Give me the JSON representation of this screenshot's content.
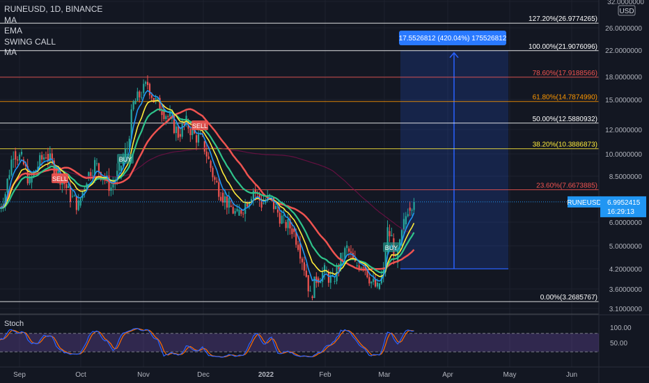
{
  "header": {
    "symbol_line": "RUNEUSD, 1D, BINANCE",
    "indicators": [
      "MA",
      "EMA",
      "SWING CALL",
      "MA"
    ]
  },
  "stoch_label": "Stoch",
  "axis": {
    "currency": "USD",
    "top_tick": "32.0000000",
    "price_ticks": [
      "26.0000000",
      "22.0000000",
      "18.0000000",
      "15.0000000",
      "12.0000000",
      "10.0000000",
      "8.5000000",
      "6.0000000",
      "5.0000000",
      "4.2000000",
      "3.6000000",
      "3.1000000"
    ],
    "stoch_ticks": [
      "100.00",
      "50.00"
    ],
    "time_labels": [
      "Sep",
      "Oct",
      "Nov",
      "Dec",
      "2022",
      "Feb",
      "Mar",
      "Apr",
      "May",
      "Jun"
    ]
  },
  "colors": {
    "background": "#131722",
    "grid": "#1e222d",
    "candle_up": "#26a69a",
    "candle_down": "#ef5350",
    "ma_fast": "#2196f3",
    "ema_yellow": "#ffeb3b",
    "ma_red": "#ef5350",
    "ma_green": "#2fc48b",
    "stoch_fill": "#7e57c2",
    "measure_box": "#2962ff",
    "price_label": "#2196f3"
  },
  "fib_levels": [
    {
      "label": "127.20%(26.9774265)",
      "color": "#ffffff"
    },
    {
      "label": "100.00%(21.9076096)",
      "color": "#ffffff"
    },
    {
      "label": "78.60%(17.9188566)",
      "color": "#ef5350"
    },
    {
      "label": "61.80%(14.7874990)",
      "color": "#ff9800"
    },
    {
      "label": "50.00%(12.5880932)",
      "color": "#ffffff"
    },
    {
      "label": "38.20%(10.3886873)",
      "color": "#ffeb3b"
    },
    {
      "label": "23.60%(7.6673885)",
      "color": "#ef5350"
    },
    {
      "label": "0.00%(3.2685767)",
      "color": "#ffffff"
    }
  ],
  "measure": {
    "label": "17.5526812 (420.04%) 175526812"
  },
  "last_price": {
    "symbol": "RUNEUSD",
    "price": "6.9952415",
    "countdown": "16:29:13"
  },
  "signals": [
    {
      "text": "SELL",
      "kind": "sell"
    },
    {
      "text": "BUY",
      "kind": "buy"
    },
    {
      "text": "SELL",
      "kind": "sell"
    },
    {
      "text": "BUY",
      "kind": "buy"
    }
  ],
  "chart_data": {
    "type": "candlestick",
    "symbol": "RUNEUSD",
    "interval": "1D",
    "exchange": "BINANCE",
    "y_scale": "log",
    "ylim": [
      3.0,
      32.0
    ],
    "x_range": [
      "2021-08-22",
      "2022-06-15"
    ],
    "series_close": [
      {
        "date": "2021-08-22",
        "close": 6.4
      },
      {
        "date": "2021-08-26",
        "close": 7.5
      },
      {
        "date": "2021-08-30",
        "close": 10.2
      },
      {
        "date": "2021-09-03",
        "close": 9.6
      },
      {
        "date": "2021-09-07",
        "close": 8.1
      },
      {
        "date": "2021-09-11",
        "close": 9.2
      },
      {
        "date": "2021-09-15",
        "close": 10.0
      },
      {
        "date": "2021-09-19",
        "close": 9.0
      },
      {
        "date": "2021-09-23",
        "close": 8.3
      },
      {
        "date": "2021-09-27",
        "close": 7.3
      },
      {
        "date": "2021-10-01",
        "close": 6.8
      },
      {
        "date": "2021-10-05",
        "close": 8.4
      },
      {
        "date": "2021-10-09",
        "close": 9.3
      },
      {
        "date": "2021-10-13",
        "close": 8.5
      },
      {
        "date": "2021-10-17",
        "close": 7.8
      },
      {
        "date": "2021-10-21",
        "close": 8.8
      },
      {
        "date": "2021-10-25",
        "close": 10.5
      },
      {
        "date": "2021-10-28",
        "close": 14.5
      },
      {
        "date": "2021-11-01",
        "close": 15.8
      },
      {
        "date": "2021-11-04",
        "close": 17.0
      },
      {
        "date": "2021-11-07",
        "close": 15.0
      },
      {
        "date": "2021-11-11",
        "close": 14.0
      },
      {
        "date": "2021-11-15",
        "close": 13.0
      },
      {
        "date": "2021-11-19",
        "close": 11.6
      },
      {
        "date": "2021-11-23",
        "close": 12.6
      },
      {
        "date": "2021-11-27",
        "close": 11.5
      },
      {
        "date": "2021-12-01",
        "close": 11.0
      },
      {
        "date": "2021-12-04",
        "close": 9.5
      },
      {
        "date": "2021-12-07",
        "close": 8.2
      },
      {
        "date": "2021-12-10",
        "close": 7.5
      },
      {
        "date": "2021-12-14",
        "close": 6.8
      },
      {
        "date": "2021-12-18",
        "close": 6.3
      },
      {
        "date": "2021-12-22",
        "close": 6.9
      },
      {
        "date": "2021-12-26",
        "close": 7.7
      },
      {
        "date": "2021-12-30",
        "close": 6.9
      },
      {
        "date": "2022-01-03",
        "close": 7.2
      },
      {
        "date": "2022-01-06",
        "close": 6.6
      },
      {
        "date": "2022-01-10",
        "close": 6.0
      },
      {
        "date": "2022-01-14",
        "close": 5.7
      },
      {
        "date": "2022-01-17",
        "close": 5.1
      },
      {
        "date": "2022-01-21",
        "close": 4.0
      },
      {
        "date": "2022-01-23",
        "close": 3.4
      },
      {
        "date": "2022-01-26",
        "close": 3.9
      },
      {
        "date": "2022-01-30",
        "close": 4.1
      },
      {
        "date": "2022-02-03",
        "close": 3.8
      },
      {
        "date": "2022-02-07",
        "close": 4.5
      },
      {
        "date": "2022-02-10",
        "close": 4.9
      },
      {
        "date": "2022-02-14",
        "close": 4.3
      },
      {
        "date": "2022-02-18",
        "close": 4.4
      },
      {
        "date": "2022-02-22",
        "close": 3.8
      },
      {
        "date": "2022-02-25",
        "close": 3.6
      },
      {
        "date": "2022-02-28",
        "close": 4.1
      },
      {
        "date": "2022-03-02",
        "close": 5.6
      },
      {
        "date": "2022-03-04",
        "close": 5.3
      },
      {
        "date": "2022-03-06",
        "close": 4.4
      },
      {
        "date": "2022-03-08",
        "close": 5.0
      },
      {
        "date": "2022-03-10",
        "close": 5.9
      },
      {
        "date": "2022-03-12",
        "close": 6.7
      },
      {
        "date": "2022-03-14",
        "close": 6.9952415
      }
    ],
    "stoch": {
      "k_series": "blue",
      "d_series": "orange",
      "ylim": [
        0,
        100
      ],
      "band": [
        20,
        80
      ]
    }
  }
}
